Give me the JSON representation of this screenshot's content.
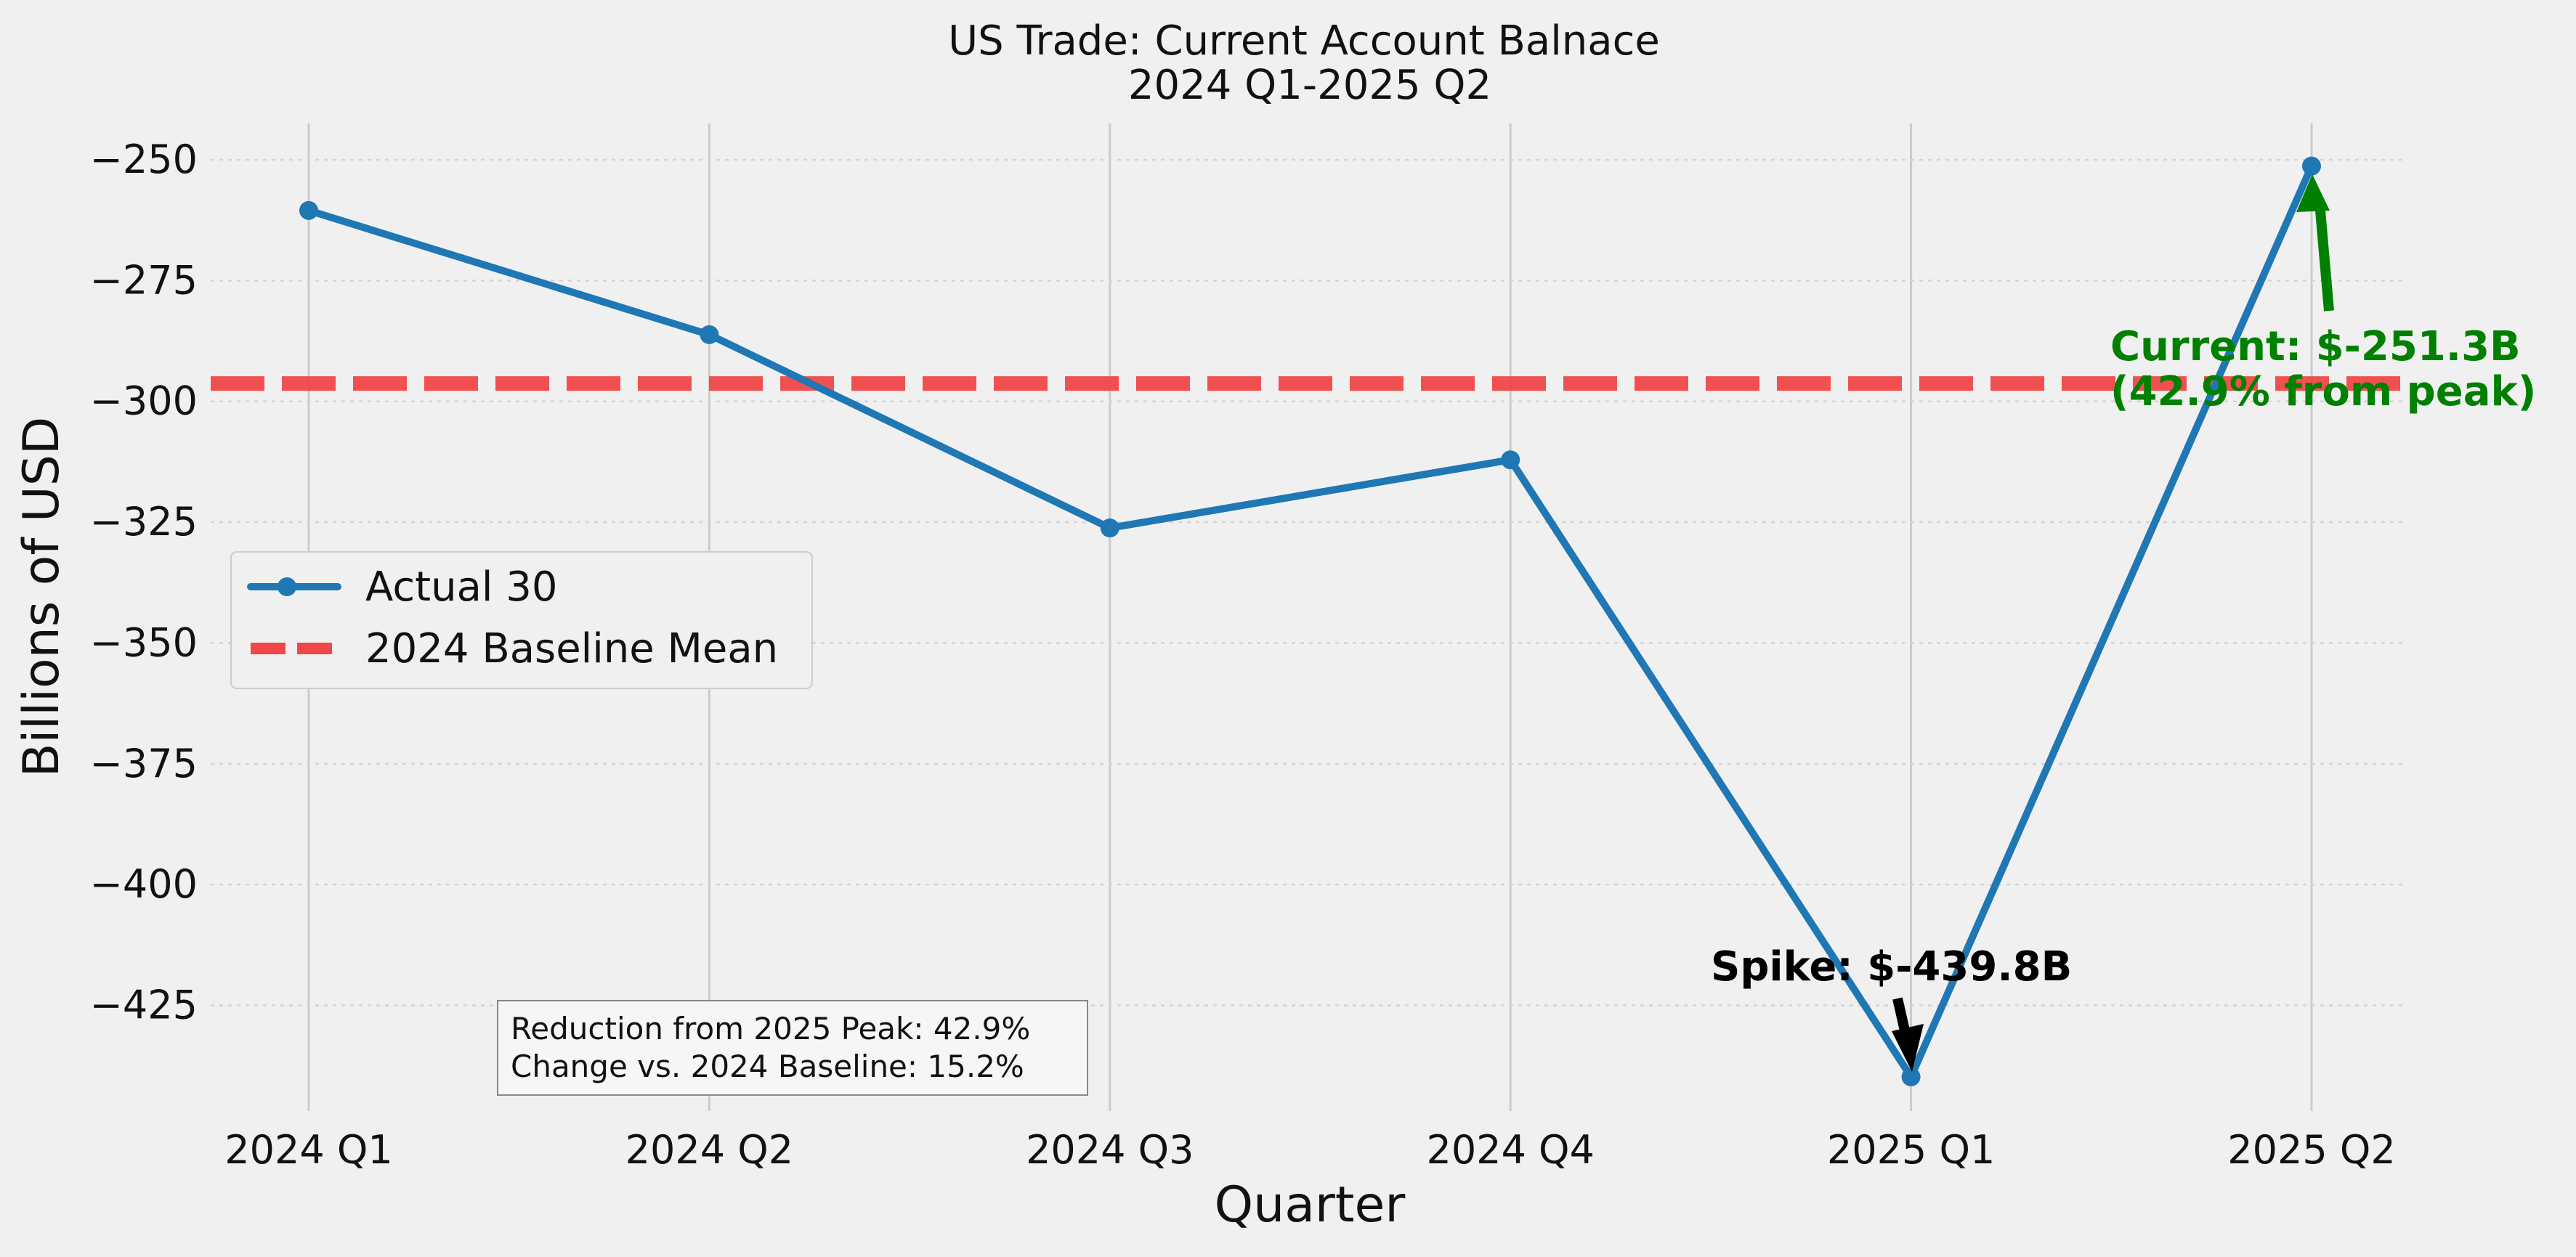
{
  "chart_data": {
    "type": "line",
    "title": "US Trade: Current Account Balnace",
    "subtitle": "2024 Q1-2025 Q2",
    "xlabel": "Quarter",
    "ylabel": "Billions of USD",
    "categories": [
      "2024 Q1",
      "2024 Q2",
      "2024 Q3",
      "2024 Q4",
      "2025 Q1",
      "2025 Q2"
    ],
    "series": [
      {
        "name": "Actual 30",
        "values": [
          -260.5,
          -286.2,
          -326.2,
          -312.1,
          -439.8,
          -251.3
        ],
        "color": "#1f77b4",
        "marker": "circle"
      }
    ],
    "baseline": {
      "name": "2024 Baseline Mean",
      "value": -296.3,
      "color": "#f04848",
      "style": "dashed"
    },
    "ylim": [
      -444,
      -242
    ],
    "yticks": [
      -250,
      -275,
      -300,
      -325,
      -350,
      -375,
      -400,
      -425
    ],
    "ytick_labels": [
      "−250",
      "−275",
      "−300",
      "−325",
      "−350",
      "−375",
      "−400",
      "−425"
    ],
    "grid": true,
    "legend_position": "center-left",
    "annotations": [
      {
        "id": "spike",
        "text": "Spike: $-439.8B",
        "target_category": "2025 Q1",
        "target_value": -439.8,
        "color": "#000000"
      },
      {
        "id": "current",
        "text_lines": [
          "Current: $-251.3B",
          "(42.9% from peak)"
        ],
        "target_category": "2025 Q2",
        "target_value": -251.3,
        "color": "#008000"
      }
    ],
    "stats_box": [
      "Reduction from 2025 Peak: 42.9%",
      "Change vs. 2024 Baseline: 15.2%"
    ]
  }
}
